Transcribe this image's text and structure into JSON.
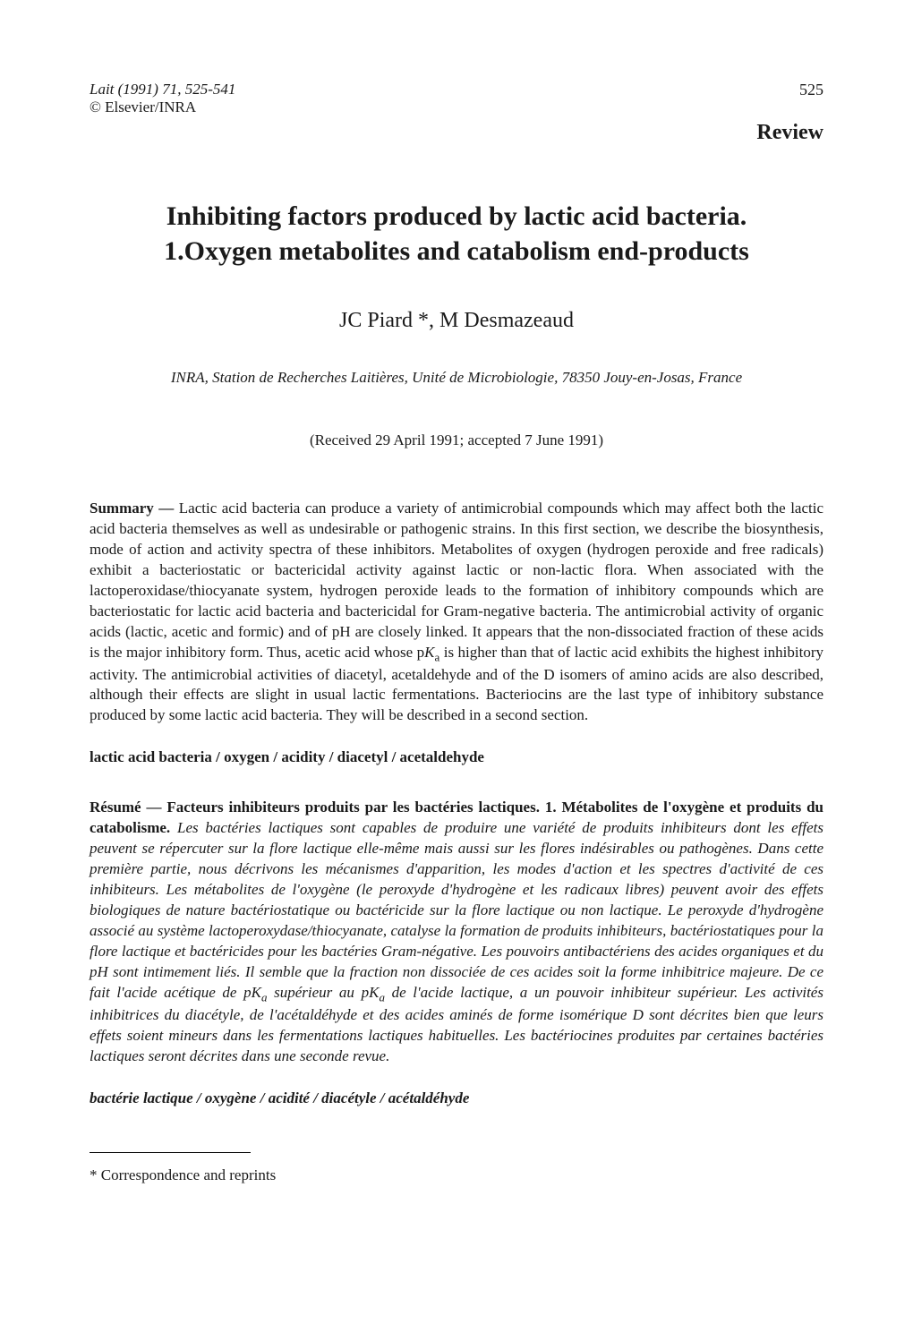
{
  "header": {
    "journal_citation": "Lait (1991) 71, 525-541",
    "copyright": "© Elsevier/INRA",
    "page_number": "525",
    "article_type": "Review"
  },
  "title_line1": "Inhibiting factors produced by lactic acid bacteria.",
  "title_line2": "1.Oxygen metabolites and catabolism end-products",
  "authors": "JC Piard *, M Desmazeaud",
  "affiliation": "INRA, Station de Recherches Laitières, Unité de Microbiologie, 78350 Jouy-en-Josas, France",
  "dates": "(Received 29 April 1991; accepted 7 June 1991)",
  "summary": {
    "label": "Summary —",
    "text_part1": " Lactic acid bacteria can produce a variety of antimicrobial compounds which may affect both the lactic acid bacteria themselves as well as undesirable or pathogenic strains. In this first section, we describe the biosynthesis, mode of action and activity spectra of these inhibitors. Metabolites of oxygen (hydrogen peroxide and free radicals) exhibit a bacteriostatic or bactericidal activity against lactic or non-lactic flora. When associated with the lactoperoxidase/thiocyanate system, hydrogen peroxide leads to the formation of inhibitory compounds which are bacteriostatic for lactic acid bacteria and bactericidal for Gram-negative bacteria. The antimicrobial activity of organic acids (lactic, acetic and formic) and of pH are closely linked. It appears that the non-dissociated fraction of these acids is the major inhibitory form. Thus, acetic acid whose p",
    "pka_K": "K",
    "pka_a": "a",
    "text_part2": " is higher than that of lactic acid exhibits the highest inhibitory activity. The antimicrobial activities of diacetyl, acetaldehyde and of the D isomers of amino acids are also described, although their effects are slight in usual lactic fermentations. Bacteriocins are the last type of inhibitory substance produced by some lactic acid bacteria. They will be described in a second section."
  },
  "keywords_en": "lactic acid bacteria / oxygen / acidity / diacetyl / acetaldehyde",
  "resume": {
    "label": "Résumé —",
    "title_fr": " Facteurs inhibiteurs produits par les bactéries lactiques. 1. Métabolites de l'oxygène et produits du catabolisme.",
    "body_part1": " Les bactéries lactiques sont capables de produire une variété de produits inhibiteurs dont les effets peuvent se répercuter sur la flore lactique elle-même mais aussi sur les flores indésirables ou pathogènes. Dans cette première partie, nous décrivons les mécanismes d'apparition, les modes d'action et les spectres d'activité de ces inhibiteurs. Les métabolites de l'oxygène (le peroxyde d'hydrogène et les radicaux libres) peuvent avoir des effets biologiques de nature bactériostatique ou bactéricide sur la flore lactique ou non lactique. Le peroxyde d'hydrogène associé au système lactoperoxydase/thiocyanate, catalyse la formation de produits inhibiteurs, bactériostatiques pour la flore lactique et bactéricides pour les bactéries Gram-négative. Les pouvoirs antibactériens des acides organiques et du pH sont intimement liés. Il semble que la fraction non dissociée de ces acides soit la forme inhibitrice majeure. De ce fait l'acide acétique de p",
    "body_part2": " supérieur au p",
    "body_part3": " de l'acide lactique, a un pouvoir inhibiteur supérieur. Les activités inhibitrices du diacétyle, de l'acétaldéhyde et des acides aminés de forme isomérique D sont décrites bien que leurs effets soient mineurs dans les fermentations lactiques habituelles. Les bactériocines produites par certaines bactéries lactiques seront décrites dans une seconde revue."
  },
  "keywords_fr": "bactérie lactique / oxygène / acidité / diacétyle / acétaldéhyde",
  "footnote": "* Correspondence and reprints"
}
